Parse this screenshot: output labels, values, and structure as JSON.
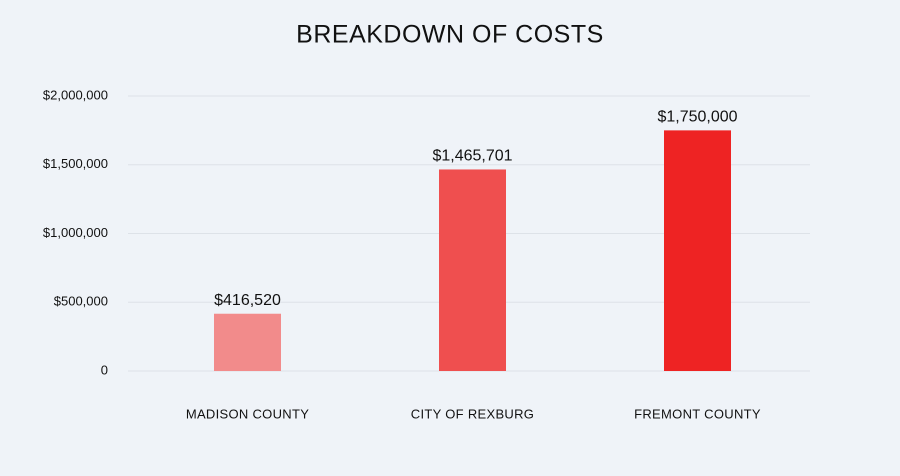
{
  "chart_data": {
    "type": "bar",
    "title": "BREAKDOWN OF COSTS",
    "categories": [
      "MADISON COUNTY",
      "CITY OF REXBURG",
      "FREMONT COUNTY"
    ],
    "values": [
      416520,
      1465701,
      1750000
    ],
    "value_labels": [
      "$416,520",
      "$1,465,701",
      "$1,750,000"
    ],
    "colors": [
      "#f28b8b",
      "#ef4f4f",
      "#ee2323"
    ],
    "ylim": [
      0,
      2000000
    ],
    "yticks": [
      0,
      {
        "value": 500000,
        "label": "$500,000"
      },
      {
        "value": 1000000,
        "label": "$1,000,000"
      },
      {
        "value": 1500000,
        "label": "$1,500,000"
      },
      {
        "value": 2000000,
        "label": "$2,000,000"
      }
    ],
    "grid": true
  }
}
